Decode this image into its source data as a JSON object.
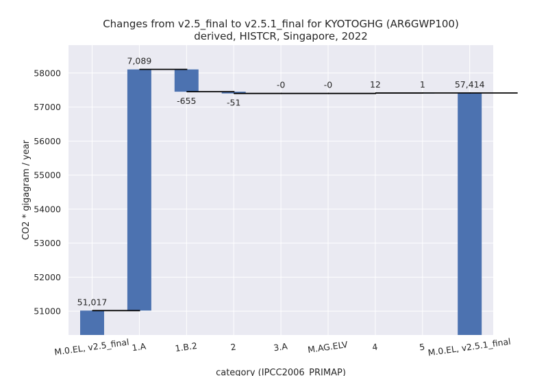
{
  "chart_data": {
    "type": "bar",
    "title": "Changes from v2.5_final to v2.5.1_final for KYOTOGHG (AR6GWP100)",
    "subtitle": "derived, HISTCR, Singapore, 2022",
    "xlabel": "category (IPCC2006_PRIMAP)",
    "ylabel": "CO2 * gigagram / year",
    "ylim": [
      50300,
      58820
    ],
    "yticks": [
      51000,
      52000,
      53000,
      54000,
      55000,
      56000,
      57000,
      58000
    ],
    "ytick_labels": [
      "51000",
      "52000",
      "53000",
      "54000",
      "55000",
      "56000",
      "57000",
      "58000"
    ],
    "grid": true,
    "categories": [
      "M.0.EL, v2.5_final",
      "1.A",
      "1.B.2",
      "2",
      "3.A",
      "M.AG.ELV",
      "4",
      "5",
      "M.0.EL, v2.5.1_final"
    ],
    "bars": [
      {
        "category": "M.0.EL, v2.5_final",
        "start": 50300,
        "end": 51017,
        "label": "51,017"
      },
      {
        "category": "1.A",
        "start": 51017,
        "end": 58106,
        "label": "7,089"
      },
      {
        "category": "1.B.2",
        "start": 58106,
        "end": 57451,
        "label": "-655"
      },
      {
        "category": "2",
        "start": 57451,
        "end": 57400,
        "label": "-51"
      },
      {
        "category": "3.A",
        "start": 57400,
        "end": 57400,
        "label": "-0"
      },
      {
        "category": "M.AG.ELV",
        "start": 57400,
        "end": 57400,
        "label": "-0"
      },
      {
        "category": "4",
        "start": 57400,
        "end": 57412,
        "label": "12"
      },
      {
        "category": "5",
        "start": 57412,
        "end": 57413,
        "label": "1"
      },
      {
        "category": "M.0.EL, v2.5.1_final",
        "start": 50300,
        "end": 57414,
        "label": "57,414"
      }
    ],
    "colors": {
      "bar": "#4c72b0",
      "connector": "#000000",
      "plot_bg": "#eaeaf2",
      "grid": "#ffffff"
    }
  }
}
